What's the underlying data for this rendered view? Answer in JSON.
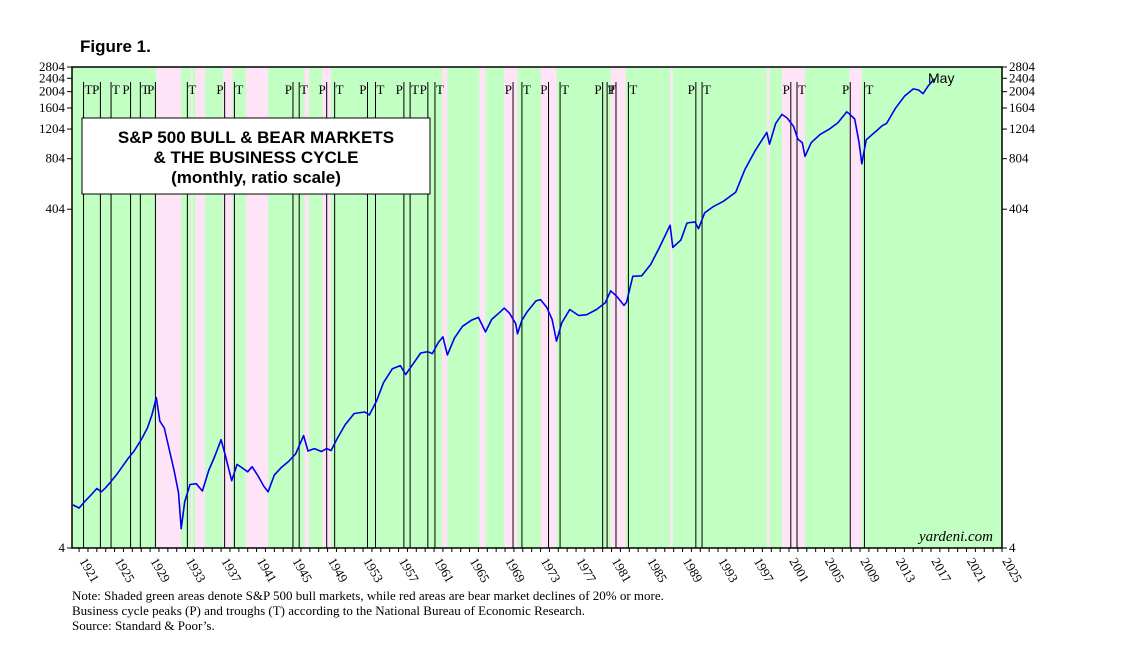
{
  "figure_label": "Figure 1.",
  "chart_data": {
    "type": "line",
    "title_lines": [
      "S&P 500 BULL & BEAR MARKETS",
      "& THE BUSINESS CYCLE",
      "(monthly, ratio scale)"
    ],
    "y_scale": "log",
    "ylim": [
      4,
      2804
    ],
    "y_ticks": [
      4,
      404,
      804,
      1204,
      1604,
      2004,
      2404,
      2804
    ],
    "xlim": [
      1920.2,
      2025.0
    ],
    "x_ticks": [
      "1921",
      "1925",
      "1929",
      "1933",
      "1937",
      "1941",
      "1945",
      "1949",
      "1953",
      "1957",
      "1961",
      "1965",
      "1969",
      "1973",
      "1977",
      "1981",
      "1985",
      "1989",
      "1993",
      "1997",
      "2001",
      "2005",
      "2009",
      "2013",
      "2017",
      "2021",
      "2025"
    ],
    "end_label": "May",
    "watermark": "yardeni.com",
    "background_color": "#c2ffc2",
    "bear_color": "#ffe4f8",
    "line_color": "#0000ee",
    "bear_markets": [
      [
        1929.7,
        1932.5
      ],
      [
        1933.6,
        1933.8
      ],
      [
        1934.1,
        1935.2
      ],
      [
        1937.2,
        1938.3
      ],
      [
        1939.8,
        1942.3
      ],
      [
        1946.4,
        1946.9
      ],
      [
        1948.4,
        1949.4
      ],
      [
        1961.9,
        1962.5
      ],
      [
        1966.1,
        1966.8
      ],
      [
        1968.9,
        1970.4
      ],
      [
        1973.0,
        1974.8
      ],
      [
        1980.9,
        1982.6
      ],
      [
        1987.6,
        1987.9
      ],
      [
        1998.5,
        1998.8
      ],
      [
        2000.2,
        2002.8
      ],
      [
        2007.8,
        2009.2
      ]
    ],
    "recession_markers": [
      {
        "label": "T",
        "x": 1921.5
      },
      {
        "label": "P",
        "x": 1923.4
      },
      {
        "label": "T",
        "x": 1924.6
      },
      {
        "label": "P",
        "x": 1926.8
      },
      {
        "label": "T",
        "x": 1927.9
      },
      {
        "label": "P",
        "x": 1929.6
      },
      {
        "label": "T",
        "x": 1933.2
      },
      {
        "label": "P",
        "x": 1937.4
      },
      {
        "label": "T",
        "x": 1938.5
      },
      {
        "label": "P",
        "x": 1945.1
      },
      {
        "label": "T",
        "x": 1945.8
      },
      {
        "label": "P",
        "x": 1948.9
      },
      {
        "label": "T",
        "x": 1949.8
      },
      {
        "label": "P",
        "x": 1953.5
      },
      {
        "label": "T",
        "x": 1954.4
      },
      {
        "label": "P",
        "x": 1957.6
      },
      {
        "label": "T",
        "x": 1958.3
      },
      {
        "label": "P",
        "x": 1960.3
      },
      {
        "label": "T",
        "x": 1961.1
      },
      {
        "label": "P",
        "x": 1969.9
      },
      {
        "label": "T",
        "x": 1970.9
      },
      {
        "label": "P",
        "x": 1973.9
      },
      {
        "label": "T",
        "x": 1975.2
      },
      {
        "label": "P",
        "x": 1980.0
      },
      {
        "label": "T",
        "x": 1980.5
      },
      {
        "label": "P",
        "x": 1981.5
      },
      {
        "label": "T",
        "x": 1982.9
      },
      {
        "label": "P",
        "x": 1990.5
      },
      {
        "label": "T",
        "x": 1991.2
      },
      {
        "label": "P",
        "x": 2001.2
      },
      {
        "label": "T",
        "x": 2001.9
      },
      {
        "label": "P",
        "x": 2007.9
      },
      {
        "label": "T",
        "x": 2009.5
      }
    ],
    "x": [
      1920.3,
      1921.0,
      1921.7,
      1922.5,
      1923.0,
      1923.5,
      1924.0,
      1924.6,
      1925.3,
      1926.0,
      1926.5,
      1927.2,
      1928.0,
      1928.7,
      1929.2,
      1929.7,
      1930.1,
      1930.6,
      1931.2,
      1931.7,
      1932.2,
      1932.5,
      1932.9,
      1933.5,
      1934.2,
      1934.9,
      1935.6,
      1936.3,
      1937.0,
      1937.5,
      1938.2,
      1938.8,
      1939.3,
      1940.0,
      1940.5,
      1941.2,
      1941.8,
      1942.3,
      1943.0,
      1943.8,
      1944.6,
      1945.4,
      1946.3,
      1946.8,
      1947.5,
      1948.3,
      1948.9,
      1949.4,
      1950.1,
      1951.0,
      1952.0,
      1953.2,
      1953.7,
      1954.5,
      1955.3,
      1956.3,
      1957.2,
      1957.8,
      1958.5,
      1959.5,
      1960.3,
      1960.8,
      1961.5,
      1962.0,
      1962.5,
      1963.3,
      1964.2,
      1965.2,
      1966.0,
      1966.8,
      1967.5,
      1968.3,
      1968.9,
      1969.5,
      1970.2,
      1970.4,
      1970.9,
      1971.5,
      1972.5,
      1973.0,
      1973.7,
      1974.3,
      1974.8,
      1975.4,
      1976.3,
      1977.3,
      1978.2,
      1979.3,
      1980.3,
      1980.9,
      1981.6,
      1982.4,
      1982.7,
      1983.4,
      1984.4,
      1985.4,
      1986.4,
      1987.6,
      1987.9,
      1988.8,
      1989.5,
      1990.4,
      1990.8,
      1991.5,
      1992.5,
      1993.6,
      1995.0,
      1996.0,
      1997.2,
      1998.5,
      1998.8,
      1999.5,
      2000.2,
      2000.8,
      2001.5,
      2002.0,
      2002.5,
      2002.8,
      2003.5,
      2004.5,
      2005.5,
      2006.5,
      2007.5,
      2007.8,
      2008.4,
      2008.9,
      2009.2,
      2009.7,
      2010.4,
      2010.9,
      2011.5,
      2012.0,
      2013.0,
      2014.0,
      2015.0,
      2015.6,
      2016.1,
      2016.7,
      2017.4
    ],
    "y": [
      7.2,
      6.9,
      7.6,
      8.4,
      9.0,
      8.6,
      9.1,
      9.9,
      11.0,
      12.4,
      13.5,
      15.0,
      17.5,
      20.5,
      24.5,
      31.0,
      22.5,
      20.5,
      15.0,
      11.5,
      8.5,
      5.2,
      7.5,
      9.5,
      9.6,
      8.7,
      11.5,
      14.0,
      17.5,
      14.0,
      10.0,
      12.5,
      12.0,
      11.3,
      12.1,
      10.6,
      9.3,
      8.6,
      10.8,
      12.0,
      13.0,
      14.4,
      18.5,
      15.0,
      15.5,
      14.9,
      15.5,
      15.1,
      17.8,
      21.5,
      25.0,
      25.5,
      24.5,
      29.5,
      38.0,
      46.0,
      48.0,
      42.5,
      48.0,
      57.0,
      58.0,
      56.5,
      66.0,
      71.0,
      55.5,
      70.0,
      82.0,
      89.0,
      92.5,
      76.0,
      90.0,
      98.0,
      105.0,
      98.0,
      85.0,
      74.0,
      89.0,
      100.0,
      116.0,
      118.0,
      106.0,
      90.0,
      67.0,
      86.0,
      103.0,
      95.0,
      96.0,
      103.0,
      113.0,
      133.0,
      123.0,
      109.0,
      114.0,
      162.0,
      163.0,
      190.0,
      240.0,
      325.0,
      240.0,
      265.0,
      335.0,
      340.0,
      310.0,
      385.0,
      420.0,
      450.0,
      510.0,
      690.0,
      900.0,
      1150.0,
      980.0,
      1300.0,
      1470.0,
      1400.0,
      1250.0,
      1050.0,
      1000.0,
      830.0,
      1000.0,
      1120.0,
      1200.0,
      1310.0,
      1520.0,
      1480.0,
      1380.0,
      1000.0,
      750.0,
      1040.0,
      1120.0,
      1180.0,
      1260.0,
      1300.0,
      1600.0,
      1880.0,
      2080.0,
      2050.0,
      1950.0,
      2170.0,
      2390.0
    ]
  },
  "notes": [
    "Note: Shaded green areas denote S&P 500 bull markets, while red areas are bear market declines of 20% or more.",
    "Business cycle peaks (P) and troughs (T) according to the National Bureau of Economic Research.",
    "Source: Standard & Poor’s."
  ]
}
